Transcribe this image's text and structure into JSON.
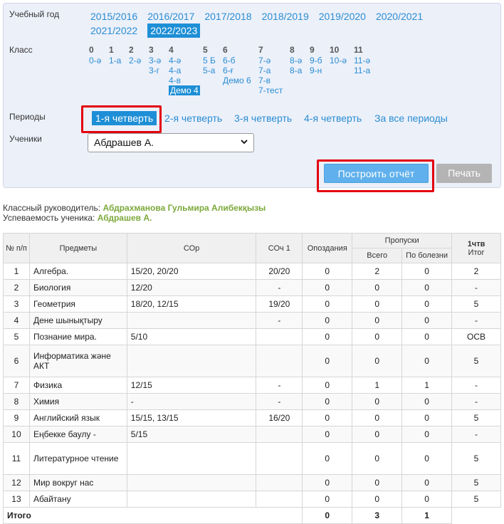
{
  "filters": {
    "year_label": "Учебный год",
    "years": [
      "2015/2016",
      "2016/2017",
      "2017/2018",
      "2018/2019",
      "2019/2020",
      "2020/2021",
      "2021/2022",
      "2022/2023"
    ],
    "selected_year": "2022/2023",
    "class_label": "Класс",
    "class_groups": [
      {
        "grade": "0",
        "items": [
          "0-ә"
        ]
      },
      {
        "grade": "1",
        "items": [
          "1-а"
        ]
      },
      {
        "grade": "2",
        "items": [
          "2-ә"
        ]
      },
      {
        "grade": "3",
        "items": [
          "3-ә",
          "3-г"
        ]
      },
      {
        "grade": "4",
        "items": [
          "4-ә",
          "4-а",
          "4-в",
          "Демо 4"
        ]
      },
      {
        "grade": "5",
        "items": [
          "5 Б",
          "5-а"
        ]
      },
      {
        "grade": "6",
        "items": [
          "6-б",
          "6-ғ",
          "Демо 6"
        ]
      },
      {
        "grade": "7",
        "items": [
          "7-ә",
          "7-а",
          "7-в",
          "7-тест"
        ]
      },
      {
        "grade": "8",
        "items": [
          "8-ә",
          "8-а"
        ]
      },
      {
        "grade": "9",
        "items": [
          "9-б",
          "9-н"
        ]
      },
      {
        "grade": "10",
        "items": [
          "10-ә"
        ]
      },
      {
        "grade": "11",
        "items": [
          "11-ә",
          "11-а"
        ]
      }
    ],
    "selected_class": "Демо 4",
    "periods_label": "Периоды",
    "periods": [
      "1-я четверть",
      "2-я четверть",
      "3-я четверть",
      "4-я четверть",
      "За все периоды"
    ],
    "selected_period": "1-я четверть",
    "students_label": "Ученики",
    "student_selected": "Абдрашев А.",
    "build_button": "Построить отчёт",
    "print_button": "Печать"
  },
  "info": {
    "teacher_label": "Классный руководитель:",
    "teacher_name": "Абдрахманова Гульмира Алибекқызы",
    "student_label": "Успеваемость ученика:",
    "student_name": "Абдрашев А."
  },
  "table": {
    "headers": {
      "num": "№ п/п",
      "subject": "Предметы",
      "sor": "СОр",
      "soch": "СОч 1",
      "late": "Опоздания",
      "absences": "Пропуски",
      "abs_total": "Всего",
      "abs_ill": "По болезни",
      "final_top": "1чтв",
      "final_bottom": "Итог"
    },
    "rows": [
      {
        "n": "1",
        "subject": "Алгебра.",
        "sor": "15/20, 20/20",
        "soch": "20/20",
        "late": "0",
        "total": "2",
        "ill": "0",
        "final": "2"
      },
      {
        "n": "2",
        "subject": "Биология",
        "sor": "12/20",
        "soch": "-",
        "late": "0",
        "total": "0",
        "ill": "0",
        "final": "-"
      },
      {
        "n": "3",
        "subject": "Геометрия",
        "sor": "18/20, 12/15",
        "soch": "19/20",
        "late": "0",
        "total": "0",
        "ill": "0",
        "final": "5"
      },
      {
        "n": "4",
        "subject": "Дене шынықтыру",
        "sor": "",
        "soch": "-",
        "late": "0",
        "total": "0",
        "ill": "0",
        "final": "-"
      },
      {
        "n": "5",
        "subject": "Познание мира.",
        "sor": "5/10",
        "soch": "",
        "late": "0",
        "total": "0",
        "ill": "0",
        "final": "ОСВ"
      },
      {
        "n": "6",
        "subject": "Информатика және АКТ",
        "sor": "",
        "soch": "",
        "late": "0",
        "total": "0",
        "ill": "0",
        "final": "5"
      },
      {
        "n": "7",
        "subject": "Физика",
        "sor": "12/15",
        "soch": "-",
        "late": "0",
        "total": "1",
        "ill": "1",
        "final": "-"
      },
      {
        "n": "8",
        "subject": "Химия",
        "sor": "-",
        "soch": "-",
        "late": "0",
        "total": "0",
        "ill": "0",
        "final": "-"
      },
      {
        "n": "9",
        "subject": "Английский язык",
        "sor": "15/15, 13/15",
        "soch": "16/20",
        "late": "0",
        "total": "0",
        "ill": "0",
        "final": "5"
      },
      {
        "n": "10",
        "subject": "Еңбекке баулу -",
        "sor": "5/15",
        "soch": "",
        "late": "0",
        "total": "0",
        "ill": "0",
        "final": "-"
      },
      {
        "n": "11",
        "subject": "Литературное чтение",
        "sor": "",
        "soch": "",
        "late": "0",
        "total": "0",
        "ill": "0",
        "final": "5"
      },
      {
        "n": "12",
        "subject": "Мир вокруг нас",
        "sor": "",
        "soch": "",
        "late": "0",
        "total": "0",
        "ill": "0",
        "final": "5"
      },
      {
        "n": "13",
        "subject": "Абайтану",
        "sor": "",
        "soch": "",
        "late": "0",
        "total": "0",
        "ill": "0",
        "final": "5"
      }
    ],
    "total": {
      "label": "Итого",
      "late": "0",
      "total": "3",
      "ill": "1"
    }
  },
  "colors": {
    "accent": "#1e8fd6",
    "link": "#2a8dd4",
    "highlight": "#e3000f",
    "name_green": "#7ba83a"
  },
  "icons": {
    "select": "chevron-down-icon"
  }
}
